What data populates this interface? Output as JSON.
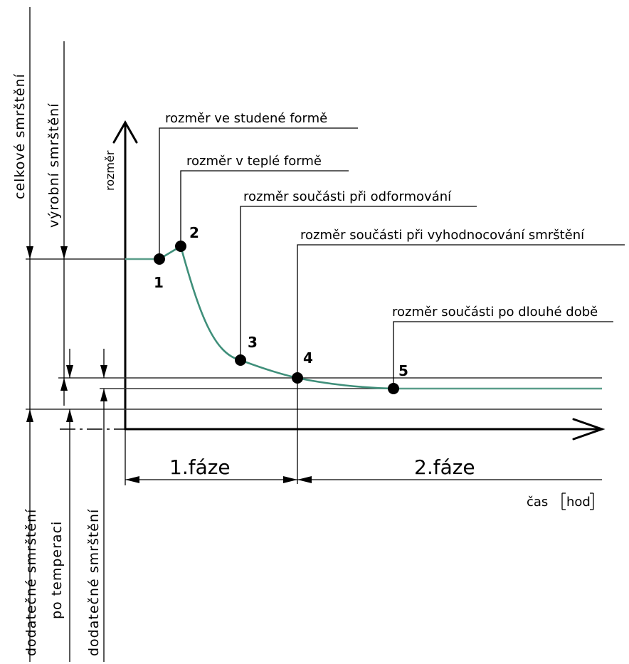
{
  "axes": {
    "y_label": "rozměr",
    "x_label": "čas",
    "x_unit": "hod"
  },
  "callouts": {
    "cold_mold": "rozměr ve studené formě",
    "warm_mold": "rozměr v teplé formě",
    "demolding": "rozměr součásti při odformování",
    "evaluation": "rozměr součásti při vyhodnocování smrštění",
    "long_time": "rozměr součásti po dlouhé době"
  },
  "points": [
    "1",
    "2",
    "3",
    "4",
    "5"
  ],
  "phases": {
    "phase1": "1.fáze",
    "phase2": "2.fáze"
  },
  "dimensions": {
    "total_shrinkage": "celkové smrštění",
    "production_shrinkage": "výrobní smrštění",
    "post_shrinkage_tempering_1": "dodatečné smrštění",
    "post_shrinkage_tempering_2": "po temperaci",
    "post_shrinkage": "dodatečné smrštění"
  },
  "colors": {
    "curve": "#3f8f7a",
    "lines": "#000000"
  }
}
